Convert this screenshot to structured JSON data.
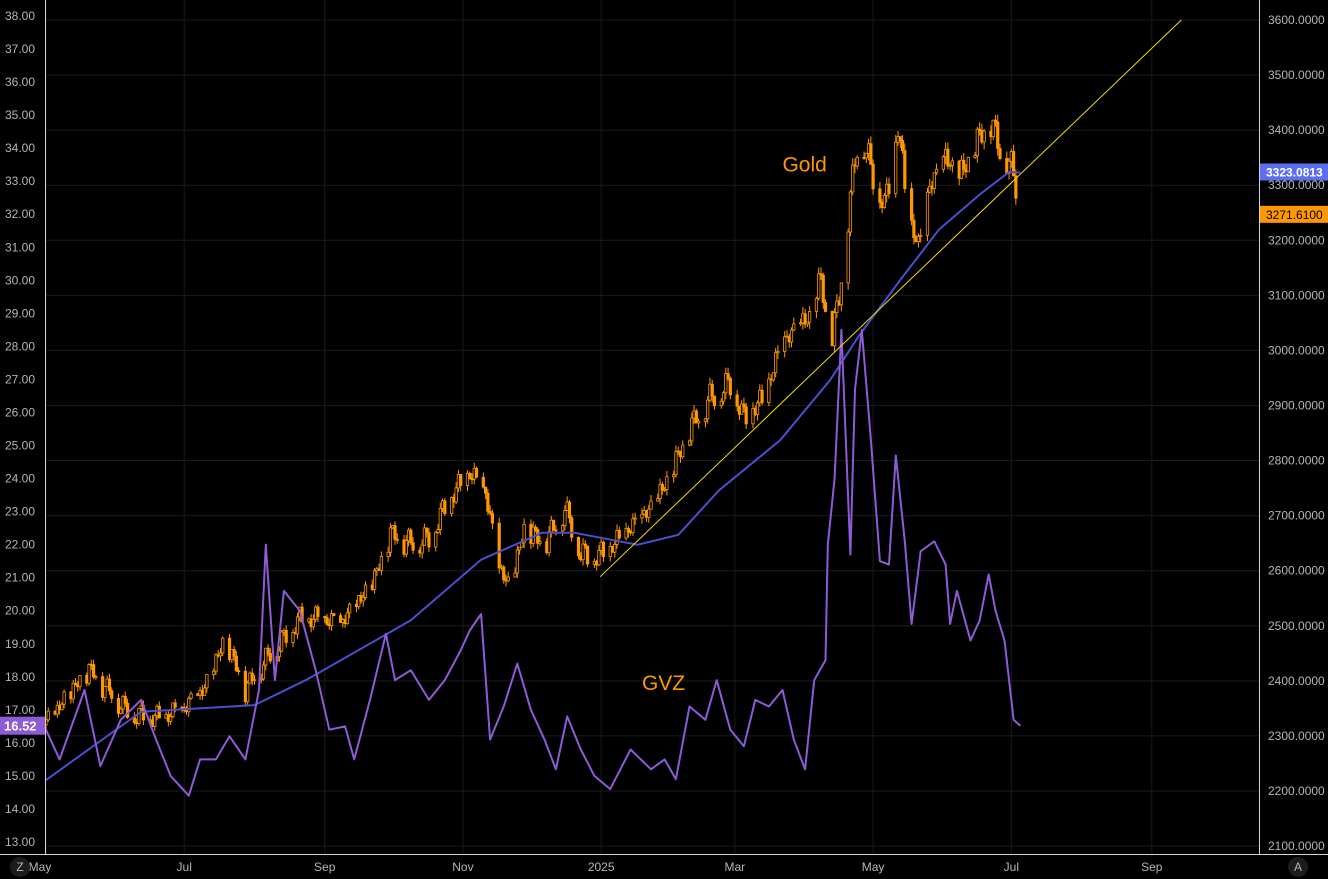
{
  "chart_data": {
    "type": "candlestick+line",
    "x_origin": "2024-05-01",
    "x_unit": "days since x_origin",
    "xlim": [
      0,
      545
    ],
    "x_ticks": [
      {
        "label": "May",
        "day": 0
      },
      {
        "label": "Jul",
        "day": 61
      },
      {
        "label": "Sep",
        "day": 123
      },
      {
        "label": "Nov",
        "day": 184
      },
      {
        "label": "2025",
        "day": 245
      },
      {
        "label": "Mar",
        "day": 304
      },
      {
        "label": "May",
        "day": 365
      },
      {
        "label": "Jul",
        "day": 426
      },
      {
        "label": "Sep",
        "day": 488
      }
    ],
    "left_axis": {
      "series": "GVZ",
      "ylim": [
        12.6,
        38.5
      ],
      "ticks": [
        "13.00",
        "14.00",
        "15.00",
        "16.00",
        "17.00",
        "18.00",
        "19.00",
        "20.00",
        "21.00",
        "22.00",
        "23.00",
        "24.00",
        "25.00",
        "26.00",
        "27.00",
        "28.00",
        "29.00",
        "30.00",
        "31.00",
        "32.00",
        "33.00",
        "34.00",
        "35.00",
        "36.00",
        "37.00",
        "38.00"
      ]
    },
    "right_axis": {
      "series": "Gold",
      "ylim": [
        2080,
        3620
      ],
      "ticks": [
        "2100.0000",
        "2200.0000",
        "2300.0000",
        "2400.0000",
        "2500.0000",
        "2600.0000",
        "2700.0000",
        "2800.0000",
        "2900.0000",
        "3000.0000",
        "3100.0000",
        "3200.0000",
        "3300.0000",
        "3400.0000",
        "3500.0000",
        "3600.0000"
      ]
    },
    "gridlines": true,
    "series": [
      {
        "name": "Gold",
        "type": "candlestick",
        "axis": "right",
        "color": "#ff9800",
        "points": [
          [
            0,
            2320
          ],
          [
            19,
            2420
          ],
          [
            37,
            2338
          ],
          [
            50,
            2330
          ],
          [
            61,
            2347
          ],
          [
            70,
            2383
          ],
          [
            79,
            2474
          ],
          [
            88,
            2383
          ],
          [
            97,
            2437
          ],
          [
            105,
            2474
          ],
          [
            112,
            2510
          ],
          [
            121,
            2510
          ],
          [
            130,
            2500
          ],
          [
            139,
            2546
          ],
          [
            145,
            2583
          ],
          [
            152,
            2665
          ],
          [
            161,
            2647
          ],
          [
            169,
            2656
          ],
          [
            178,
            2728
          ],
          [
            187,
            2774
          ],
          [
            194,
            2737
          ],
          [
            200,
            2601
          ],
          [
            205,
            2565
          ],
          [
            211,
            2674
          ],
          [
            220,
            2647
          ],
          [
            229,
            2710
          ],
          [
            236,
            2629
          ],
          [
            242,
            2620
          ],
          [
            249,
            2638
          ],
          [
            258,
            2674
          ],
          [
            267,
            2710
          ],
          [
            275,
            2765
          ],
          [
            284,
            2855
          ],
          [
            293,
            2910
          ],
          [
            302,
            2937
          ],
          [
            308,
            2874
          ],
          [
            317,
            2910
          ],
          [
            324,
            3001
          ],
          [
            331,
            3037
          ],
          [
            337,
            3056
          ],
          [
            342,
            3128
          ],
          [
            346,
            3001
          ],
          [
            350,
            3092
          ],
          [
            355,
            3274
          ],
          [
            359,
            3400
          ],
          [
            364,
            3328
          ],
          [
            370,
            3256
          ],
          [
            376,
            3400
          ],
          [
            381,
            3237
          ],
          [
            385,
            3183
          ],
          [
            390,
            3292
          ],
          [
            397,
            3346
          ],
          [
            403,
            3310
          ],
          [
            410,
            3364
          ],
          [
            416,
            3419
          ],
          [
            421,
            3364
          ],
          [
            426,
            3328
          ],
          [
            430,
            3271.61
          ]
        ]
      },
      {
        "name": "Gold moving average",
        "type": "line",
        "axis": "right",
        "color": "#4a4fcf",
        "points": [
          [
            0,
            2220
          ],
          [
            42,
            2344
          ],
          [
            92,
            2356
          ],
          [
            115,
            2402
          ],
          [
            161,
            2510
          ],
          [
            192,
            2620
          ],
          [
            219,
            2669
          ],
          [
            233,
            2669
          ],
          [
            261,
            2647
          ],
          [
            279,
            2665
          ],
          [
            297,
            2746
          ],
          [
            324,
            2837
          ],
          [
            346,
            2946
          ],
          [
            359,
            3028
          ],
          [
            377,
            3128
          ],
          [
            394,
            3219
          ],
          [
            412,
            3283
          ],
          [
            425,
            3324
          ],
          [
            430,
            3323.0813
          ]
        ]
      },
      {
        "name": "GVZ",
        "type": "line",
        "axis": "left",
        "color": "#8e5bd6",
        "points": [
          [
            0,
            16.4
          ],
          [
            6,
            15.5
          ],
          [
            17,
            17.6
          ],
          [
            24,
            15.3
          ],
          [
            33,
            16.7
          ],
          [
            42,
            17.3
          ],
          [
            48,
            16.2
          ],
          [
            55,
            15.0
          ],
          [
            63,
            14.4
          ],
          [
            68,
            15.5
          ],
          [
            75,
            15.5
          ],
          [
            81,
            16.2
          ],
          [
            88,
            15.5
          ],
          [
            94,
            17.6
          ],
          [
            97,
            22.0
          ],
          [
            101,
            17.9
          ],
          [
            105,
            20.6
          ],
          [
            112,
            20.0
          ],
          [
            119,
            18.2
          ],
          [
            125,
            16.4
          ],
          [
            132,
            16.5
          ],
          [
            136,
            15.5
          ],
          [
            143,
            17.3
          ],
          [
            150,
            19.3
          ],
          [
            154,
            17.9
          ],
          [
            161,
            18.2
          ],
          [
            169,
            17.3
          ],
          [
            176,
            17.9
          ],
          [
            183,
            18.8
          ],
          [
            187,
            19.4
          ],
          [
            192,
            19.9
          ],
          [
            196,
            16.1
          ],
          [
            202,
            17.1
          ],
          [
            208,
            18.4
          ],
          [
            214,
            17.0
          ],
          [
            220,
            16.1
          ],
          [
            225,
            15.2
          ],
          [
            230,
            16.8
          ],
          [
            236,
            15.8
          ],
          [
            242,
            15.0
          ],
          [
            249,
            14.6
          ],
          [
            258,
            15.8
          ],
          [
            267,
            15.2
          ],
          [
            273,
            15.5
          ],
          [
            278,
            14.9
          ],
          [
            284,
            17.1
          ],
          [
            291,
            16.7
          ],
          [
            296,
            17.9
          ],
          [
            302,
            16.4
          ],
          [
            308,
            15.9
          ],
          [
            313,
            17.3
          ],
          [
            319,
            17.1
          ],
          [
            325,
            17.6
          ],
          [
            330,
            16.1
          ],
          [
            335,
            15.2
          ],
          [
            339,
            17.9
          ],
          [
            344,
            18.5
          ],
          [
            345,
            22.0
          ],
          [
            348,
            24.0
          ],
          [
            351,
            28.5
          ],
          [
            355,
            21.7
          ],
          [
            357,
            26.7
          ],
          [
            360,
            28.5
          ],
          [
            364,
            25.2
          ],
          [
            368,
            21.5
          ],
          [
            372,
            21.4
          ],
          [
            375,
            24.7
          ],
          [
            379,
            22.1
          ],
          [
            382,
            19.6
          ],
          [
            386,
            21.8
          ],
          [
            392,
            22.1
          ],
          [
            397,
            21.4
          ],
          [
            399,
            19.6
          ],
          [
            402,
            20.6
          ],
          [
            408,
            19.1
          ],
          [
            412,
            19.7
          ],
          [
            416,
            21.1
          ],
          [
            419,
            20.0
          ],
          [
            423,
            19.1
          ],
          [
            427,
            16.7
          ],
          [
            430,
            16.52
          ]
        ]
      },
      {
        "name": "Trendline",
        "type": "line",
        "axis": "right",
        "color": "#f5d90a",
        "points": [
          [
            244.5,
            2589
          ],
          [
            501,
            3600
          ]
        ]
      }
    ],
    "price_labels": [
      {
        "series": "Gold moving average",
        "text": "3323.0813",
        "value": 3323.0813,
        "color": "#5b6ff0"
      },
      {
        "series": "Gold",
        "text": "3271.6100",
        "value": 3271.61,
        "color": "#ff9800"
      },
      {
        "series": "GVZ",
        "text": "16.52",
        "value": 16.52,
        "color": "#8e5bd6"
      }
    ],
    "annotations": [
      {
        "text": "Gold",
        "day": 325,
        "value_right": 3325
      },
      {
        "text": "GVZ",
        "day": 263,
        "value_left": 17.6
      }
    ]
  },
  "corner_buttons": {
    "left": "Z",
    "right": "A"
  }
}
